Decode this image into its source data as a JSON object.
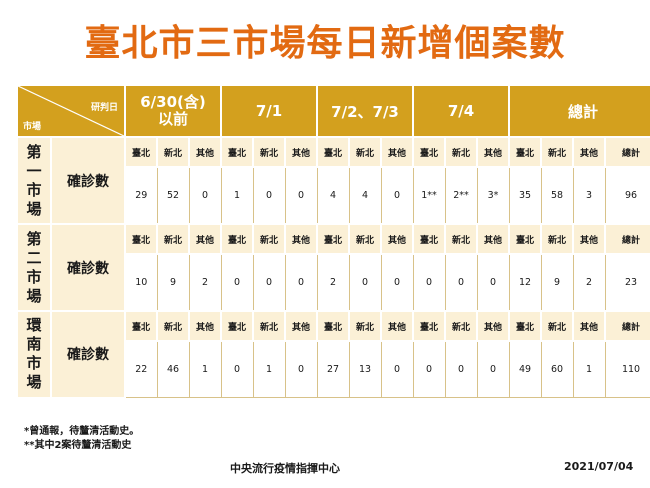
{
  "title": "臺北市三市場每日新增個案數",
  "header": {
    "corner_top": "研判日",
    "corner_bottom": "市場",
    "periods": [
      "6/30(含)\n以前",
      "7/1",
      "7/2、7/3",
      "7/4",
      "總計"
    ]
  },
  "sub_labels": [
    "臺北",
    "新北",
    "其他"
  ],
  "total_sub_labels": [
    "臺北",
    "新北",
    "其他",
    "總計"
  ],
  "markets": [
    {
      "name": "第\n一\n市\n場",
      "metric": "確診數",
      "values": [
        "29",
        "52",
        "0",
        "1",
        "0",
        "0",
        "4",
        "4",
        "0",
        "1**",
        "2**",
        "3*"
      ],
      "totals": [
        "35",
        "58",
        "3",
        "96"
      ]
    },
    {
      "name": "第\n二\n市\n場",
      "metric": "確診數",
      "values": [
        "10",
        "9",
        "2",
        "0",
        "0",
        "0",
        "2",
        "0",
        "0",
        "0",
        "0",
        "0"
      ],
      "totals": [
        "12",
        "9",
        "2",
        "23"
      ]
    },
    {
      "name": "環\n南\n市\n場",
      "metric": "確診數",
      "values": [
        "22",
        "46",
        "1",
        "0",
        "1",
        "0",
        "27",
        "13",
        "0",
        "0",
        "0",
        "0"
      ],
      "totals": [
        "49",
        "60",
        "1",
        "110"
      ]
    }
  ],
  "notes": [
    "*曾通報，待釐清活動史。",
    "**其中2案待釐清活動史"
  ],
  "footer": {
    "org": "中央流行疫情指揮中心",
    "date": "2021/07/04"
  }
}
